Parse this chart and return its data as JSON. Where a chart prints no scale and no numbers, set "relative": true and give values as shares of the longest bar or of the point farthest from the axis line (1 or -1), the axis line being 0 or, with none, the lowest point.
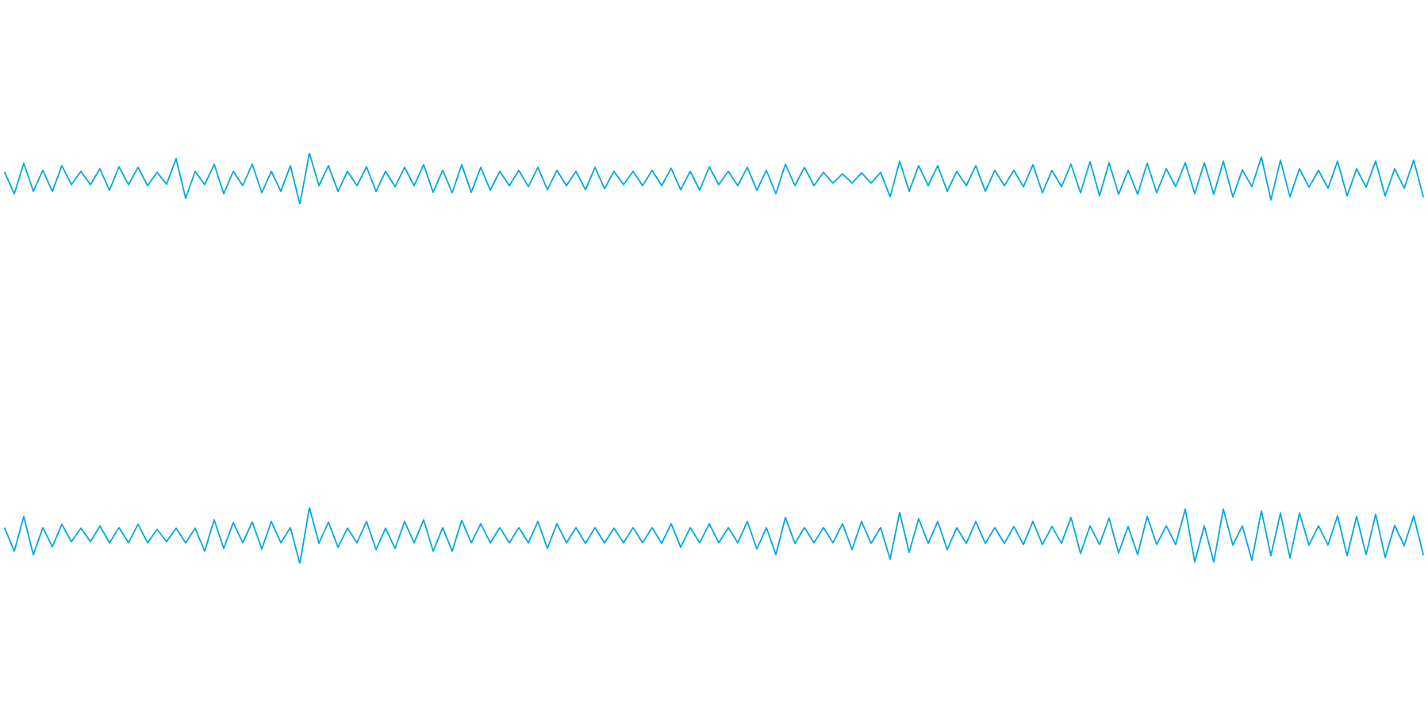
{
  "chart_data": [
    {
      "type": "line",
      "relative": true,
      "color": "#00a9e0",
      "categories": [
        null,
        null,
        null,
        null,
        null,
        null,
        null,
        null,
        null,
        null,
        null,
        null,
        null,
        null,
        null,
        null,
        null,
        null,
        null,
        null,
        null,
        null,
        null,
        null,
        null,
        null,
        null,
        null,
        null,
        null,
        null,
        null,
        null,
        null,
        null,
        null,
        null,
        null,
        null,
        null,
        null,
        null,
        null,
        null,
        null,
        null,
        null,
        null,
        null,
        null,
        null,
        null,
        null,
        null,
        null,
        null,
        null,
        null,
        null,
        null,
        null,
        null,
        null,
        null,
        null,
        null,
        null,
        null,
        null,
        null,
        null,
        null,
        null,
        null,
        null,
        null,
        null,
        null,
        null,
        null,
        null,
        null,
        null,
        null,
        null,
        null,
        null,
        null,
        null,
        null,
        null,
        null,
        null,
        null,
        null,
        null,
        null,
        null,
        null,
        null,
        null,
        null,
        null,
        null,
        null,
        null,
        null,
        null,
        null,
        null,
        null,
        null,
        null,
        null,
        null,
        null,
        null,
        null,
        null,
        null,
        null,
        null,
        null,
        null,
        null,
        null,
        null,
        null,
        null,
        null,
        null,
        null,
        null,
        null,
        null,
        null,
        null,
        null,
        null,
        null,
        null,
        null,
        null,
        null,
        null,
        null,
        null,
        null,
        null,
        null
      ],
      "values": [
        0.62,
        0.2,
        0.8,
        0.25,
        0.66,
        0.25,
        0.75,
        0.38,
        0.64,
        0.38,
        0.69,
        0.27,
        0.73,
        0.38,
        0.72,
        0.36,
        0.62,
        0.39,
        0.89,
        0.11,
        0.64,
        0.38,
        0.78,
        0.2,
        0.64,
        0.36,
        0.78,
        0.22,
        0.64,
        0.25,
        0.75,
        0,
        1,
        0.36,
        0.75,
        0.25,
        0.64,
        0.36,
        0.73,
        0.25,
        0.64,
        0.34,
        0.72,
        0.36,
        0.77,
        0.23,
        0.66,
        0.22,
        0.77,
        0.23,
        0.72,
        0.27,
        0.64,
        0.36,
        0.66,
        0.34,
        0.72,
        0.28,
        0.66,
        0.36,
        0.64,
        0.28,
        0.72,
        0.3,
        0.64,
        0.38,
        0.64,
        0.36,
        0.66,
        0.36,
        0.7,
        0.28,
        0.64,
        0.27,
        0.73,
        0.38,
        0.64,
        0.36,
        0.72,
        0.27,
        0.66,
        0.2,
        0.78,
        0.36,
        0.72,
        0.36,
        0.62,
        0.41,
        0.59,
        0.41,
        0.61,
        0.41,
        0.62,
        0.14,
        0.84,
        0.25,
        0.75,
        0.36,
        0.75,
        0.25,
        0.64,
        0.36,
        0.75,
        0.25,
        0.66,
        0.36,
        0.66,
        0.34,
        0.77,
        0.22,
        0.66,
        0.34,
        0.78,
        0.22,
        0.83,
        0.16,
        0.81,
        0.19,
        0.66,
        0.19,
        0.8,
        0.22,
        0.69,
        0.34,
        0.81,
        0.2,
        0.81,
        0.19,
        0.84,
        0.14,
        0.67,
        0.34,
        0.92,
        0.08,
        0.86,
        0.14,
        0.69,
        0.33,
        0.66,
        0.31,
        0.84,
        0.16,
        0.69,
        0.33,
        0.84,
        0.16,
        0.69,
        0.31,
        0.86,
        0.14
      ]
    },
    {
      "type": "line",
      "relative": true,
      "color": "#00a9e0",
      "categories": [
        null,
        null,
        null,
        null,
        null,
        null,
        null,
        null,
        null,
        null,
        null,
        null,
        null,
        null,
        null,
        null,
        null,
        null,
        null,
        null,
        null,
        null,
        null,
        null,
        null,
        null,
        null,
        null,
        null,
        null,
        null,
        null,
        null,
        null,
        null,
        null,
        null,
        null,
        null,
        null,
        null,
        null,
        null,
        null,
        null,
        null,
        null,
        null,
        null,
        null,
        null,
        null,
        null,
        null,
        null,
        null,
        null,
        null,
        null,
        null,
        null,
        null,
        null,
        null,
        null,
        null,
        null,
        null,
        null,
        null,
        null,
        null,
        null,
        null,
        null,
        null,
        null,
        null,
        null,
        null,
        null,
        null,
        null,
        null,
        null,
        null,
        null,
        null,
        null,
        null,
        null,
        null,
        null,
        null,
        null,
        null,
        null,
        null,
        null,
        null,
        null,
        null,
        null,
        null,
        null,
        null,
        null,
        null,
        null,
        null,
        null,
        null,
        null,
        null,
        null,
        null,
        null,
        null,
        null,
        null,
        null,
        null,
        null,
        null,
        null,
        null,
        null,
        null,
        null,
        null,
        null,
        null,
        null,
        null,
        null,
        null,
        null,
        null,
        null,
        null,
        null,
        null,
        null,
        null,
        null,
        null,
        null,
        null,
        null,
        null
      ],
      "values": [
        0.63,
        0.22,
        0.84,
        0.16,
        0.64,
        0.3,
        0.7,
        0.39,
        0.63,
        0.39,
        0.67,
        0.37,
        0.64,
        0.37,
        0.7,
        0.37,
        0.61,
        0.39,
        0.63,
        0.37,
        0.63,
        0.22,
        0.78,
        0.27,
        0.73,
        0.37,
        0.74,
        0.26,
        0.75,
        0.37,
        0.64,
        0,
        1,
        0.36,
        0.74,
        0.29,
        0.63,
        0.37,
        0.75,
        0.25,
        0.63,
        0.27,
        0.75,
        0.37,
        0.78,
        0.22,
        0.64,
        0.22,
        0.77,
        0.37,
        0.71,
        0.37,
        0.64,
        0.37,
        0.64,
        0.37,
        0.75,
        0.27,
        0.71,
        0.37,
        0.64,
        0.36,
        0.64,
        0.37,
        0.63,
        0.37,
        0.64,
        0.37,
        0.64,
        0.36,
        0.71,
        0.29,
        0.64,
        0.37,
        0.71,
        0.37,
        0.64,
        0.37,
        0.75,
        0.26,
        0.64,
        0.16,
        0.82,
        0.36,
        0.64,
        0.37,
        0.64,
        0.37,
        0.71,
        0.25,
        0.75,
        0.36,
        0.64,
        0.08,
        0.91,
        0.2,
        0.8,
        0.36,
        0.75,
        0.25,
        0.64,
        0.36,
        0.75,
        0.36,
        0.64,
        0.36,
        0.66,
        0.34,
        0.75,
        0.34,
        0.66,
        0.36,
        0.82,
        0.18,
        0.67,
        0.34,
        0.81,
        0.19,
        0.66,
        0.16,
        0.84,
        0.34,
        0.67,
        0.34,
        0.97,
        0.03,
        0.67,
        0.03,
        0.97,
        0.33,
        0.67,
        0.06,
        0.94,
        0.14,
        0.9,
        0.1,
        0.9,
        0.33,
        0.67,
        0.33,
        0.85,
        0.14,
        0.84,
        0.16,
        0.88,
        0.11,
        0.68,
        0.32,
        0.85,
        0.16
      ]
    }
  ]
}
